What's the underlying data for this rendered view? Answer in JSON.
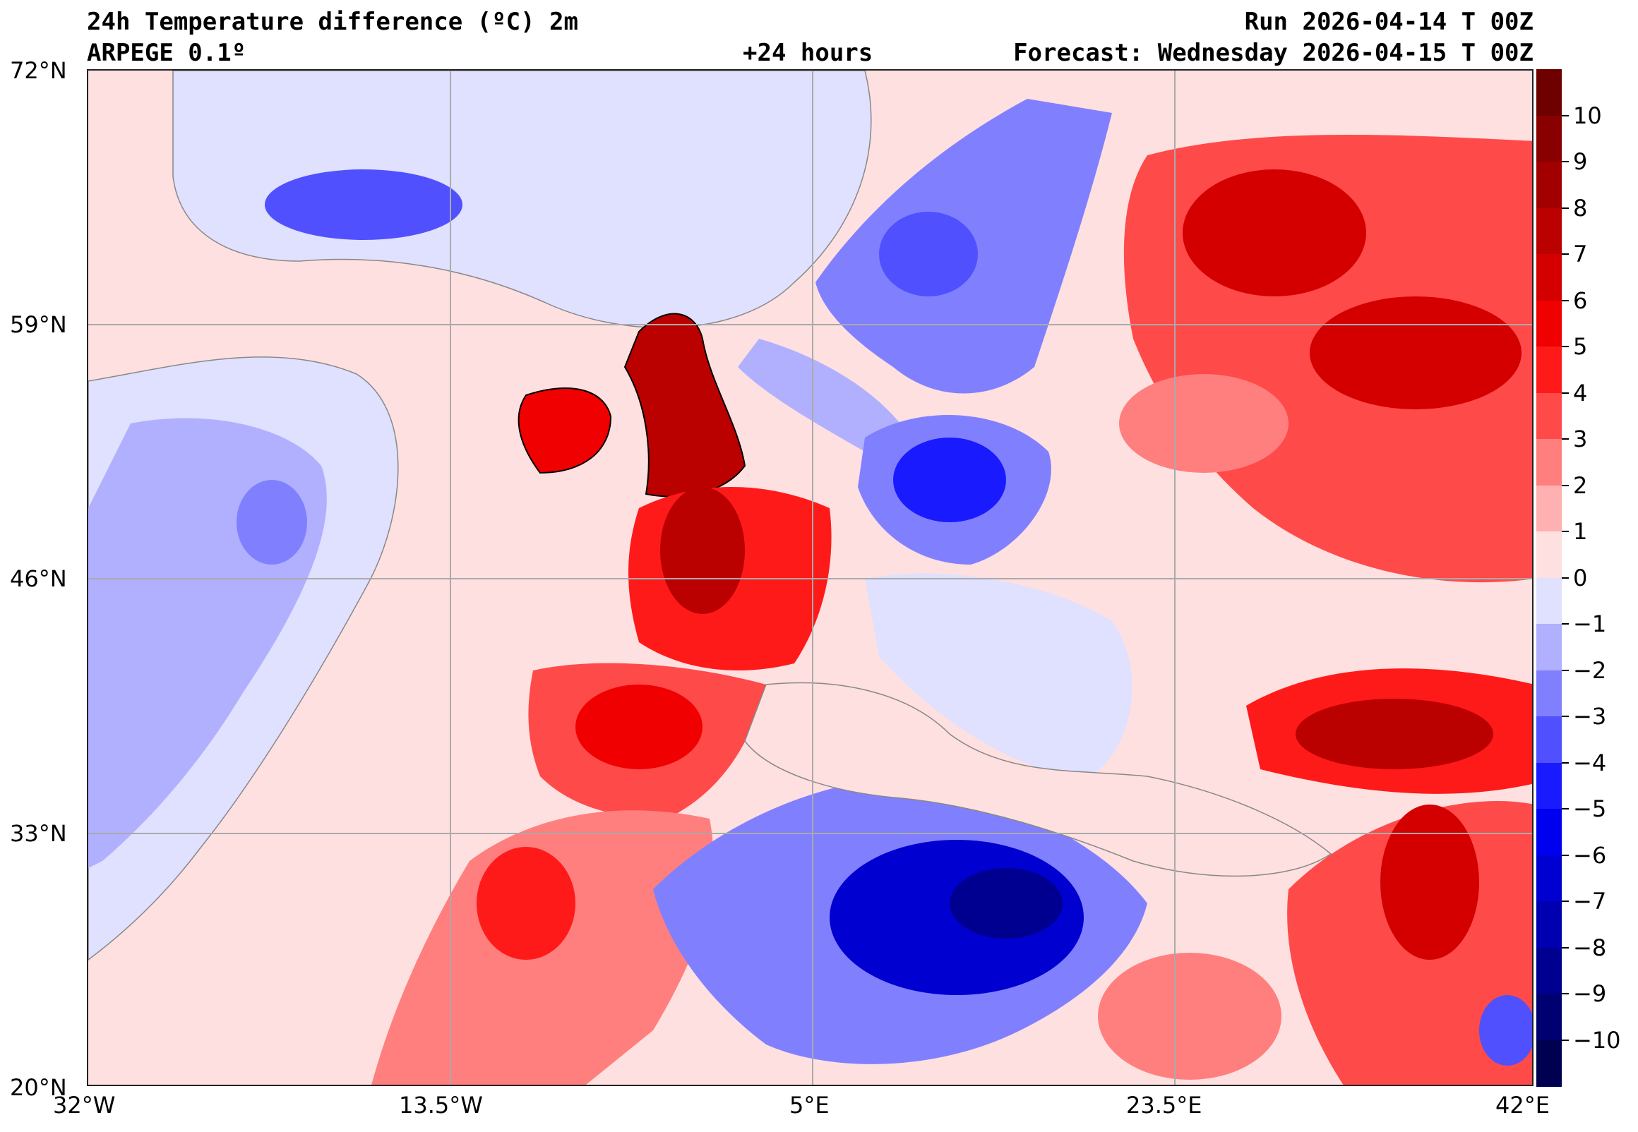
{
  "header": {
    "title": "24h Temperature difference (ºC) 2m",
    "model": "ARPEGE 0.1º",
    "lead_time": "+24 hours",
    "run": "Run 2026-04-14 T 00Z",
    "forecast": "Forecast: Wednesday 2026-04-15 T 00Z"
  },
  "axes": {
    "lat_labels": [
      "72°N",
      "59°N",
      "46°N",
      "33°N",
      "20°N"
    ],
    "lon_labels": [
      "32°W",
      "13.5°W",
      "5°E",
      "23.5°E",
      "42°E"
    ]
  },
  "colorbar": {
    "labels": [
      "10",
      "9",
      "8",
      "7",
      "6",
      "5",
      "4",
      "3",
      "2",
      "1",
      "0",
      "−1",
      "−2",
      "−3",
      "−4",
      "−5",
      "−6",
      "−7",
      "−8",
      "−9",
      "−10"
    ],
    "colors": [
      "#6e0000",
      "#880000",
      "#a20000",
      "#bb0000",
      "#d40000",
      "#f00000",
      "#ff1a1a",
      "#ff4a4a",
      "#ff7f7f",
      "#ffb0b0",
      "#ffe0e0",
      "#e0e0ff",
      "#b0b0ff",
      "#8080ff",
      "#5050ff",
      "#1a1aff",
      "#0000f0",
      "#0000d0",
      "#0000b0",
      "#000090",
      "#000070",
      "#000050"
    ]
  }
}
